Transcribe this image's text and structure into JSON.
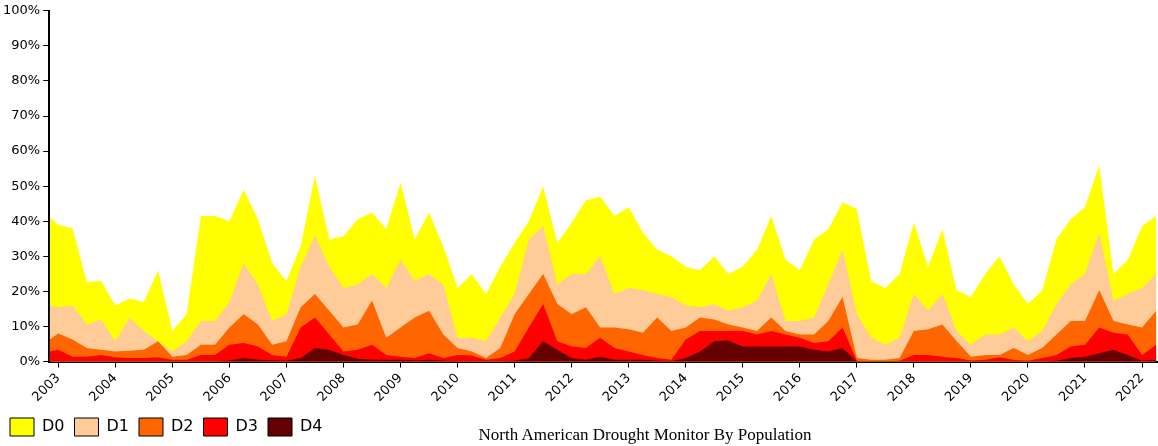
{
  "chart_data": {
    "type": "area",
    "title": "North American Drought Monitor By Population",
    "legend": "bottom left",
    "x": [
      2002.85,
      2003,
      2003.25,
      2003.5,
      2003.75,
      2004,
      2004.25,
      2004.5,
      2004.75,
      2005,
      2005.25,
      2005.5,
      2005.75,
      2006,
      2006.25,
      2006.5,
      2006.75,
      2007,
      2007.25,
      2007.5,
      2007.75,
      2008,
      2008.25,
      2008.5,
      2008.75,
      2009,
      2009.25,
      2009.5,
      2009.75,
      2010,
      2010.25,
      2010.5,
      2010.75,
      2011,
      2011.25,
      2011.5,
      2011.75,
      2012,
      2012.25,
      2012.5,
      2012.75,
      2013,
      2013.25,
      2013.5,
      2013.75,
      2014,
      2014.25,
      2014.5,
      2014.75,
      2015,
      2015.25,
      2015.5,
      2015.75,
      2016,
      2016.25,
      2016.5,
      2016.75,
      2017,
      2017.25,
      2017.5,
      2017.75,
      2018,
      2018.25,
      2018.5,
      2018.75,
      2019,
      2019.25,
      2019.5,
      2019.75,
      2020,
      2020.25,
      2020.5,
      2020.75,
      2021,
      2021.25,
      2021.5,
      2021.75,
      2022,
      2022.25
    ],
    "xlim": [
      2002.84,
      2022.28
    ],
    "xticks": [
      2003,
      2004,
      2005,
      2006,
      2007,
      2008,
      2009,
      2010,
      2011,
      2012,
      2013,
      2014,
      2015,
      2016,
      2017,
      2018,
      2019,
      2020,
      2021,
      2022
    ],
    "ylim": [
      0,
      100
    ],
    "yticks": [
      {
        "value": 0,
        "label": "0%"
      },
      {
        "value": 10,
        "label": "10%"
      },
      {
        "value": 20,
        "label": "20%"
      },
      {
        "value": 30,
        "label": "30%"
      },
      {
        "value": 40,
        "label": "40%"
      },
      {
        "value": 50,
        "label": "50%"
      },
      {
        "value": 60,
        "label": "60%"
      },
      {
        "value": 70,
        "label": "70%"
      },
      {
        "value": 80,
        "label": "80%"
      },
      {
        "value": 90,
        "label": "90%"
      },
      {
        "value": 100,
        "label": "100%"
      }
    ],
    "series": [
      {
        "name": "D0",
        "color": "#ffff00",
        "values": [
          41,
          39,
          38,
          22.7,
          23,
          16,
          18,
          17,
          26,
          8.7,
          13.5,
          41.5,
          41.5,
          40,
          49,
          40.6,
          28,
          23,
          32.9,
          53,
          34.8,
          35.7,
          40.6,
          42.5,
          37.7,
          51,
          34.8,
          42.5,
          32.9,
          21,
          25,
          19.3,
          27,
          33.8,
          40,
          50,
          33.8,
          39.6,
          46,
          47,
          41.5,
          44,
          36.7,
          31.9,
          30,
          27,
          26,
          30,
          25,
          27,
          31.9,
          41.5,
          29,
          26,
          34.8,
          37.7,
          45.4,
          43.5,
          23,
          21,
          25,
          39.6,
          27,
          37.7,
          20.3,
          18.4,
          25,
          30,
          22,
          16.4,
          20.3,
          34.8,
          40.6,
          44,
          56,
          25,
          29,
          38.6,
          41.5
        ]
      },
      {
        "name": "D1",
        "color": "#ffcc99",
        "values": [
          16,
          15.5,
          16,
          10.6,
          12,
          5.8,
          12.6,
          8.7,
          5.8,
          2.9,
          5.8,
          11.6,
          11.6,
          17,
          28,
          22,
          11.6,
          13.5,
          27,
          36,
          27,
          21,
          22,
          25,
          21,
          29,
          23,
          25,
          22,
          6.8,
          6.8,
          5.8,
          12.6,
          19.3,
          34.8,
          38.6,
          22,
          25,
          25,
          30,
          19.3,
          21,
          20.3,
          19.3,
          18.4,
          16,
          15.5,
          16.4,
          14.5,
          15.5,
          17.4,
          25,
          11.6,
          11.6,
          12.6,
          22,
          31.9,
          13.5,
          6.8,
          4.8,
          6.8,
          19.3,
          14.5,
          19.3,
          8.7,
          4.8,
          7.7,
          7.7,
          9.7,
          5.8,
          8.7,
          16.4,
          22,
          25,
          36.7,
          17.4,
          19.3,
          21,
          25
        ]
      },
      {
        "name": "D2",
        "color": "#ff6600",
        "values": [
          6.3,
          8,
          6.3,
          3.9,
          3.4,
          2.9,
          3.1,
          3.4,
          5.8,
          1.4,
          1.9,
          4.8,
          4.8,
          9.7,
          13.5,
          10.6,
          4.8,
          5.8,
          15.5,
          19.3,
          14.5,
          9.7,
          10.6,
          17.4,
          6.8,
          9.7,
          12.6,
          14.5,
          7.7,
          3.9,
          2.9,
          1,
          3.9,
          13.5,
          19.3,
          25,
          16.4,
          13.5,
          15.5,
          9.7,
          9.7,
          9.2,
          8.2,
          12.6,
          8.7,
          9.7,
          12.6,
          12,
          10.6,
          9.7,
          8.7,
          12.6,
          8.7,
          7.7,
          7.7,
          11.6,
          18.4,
          1,
          0.5,
          0.5,
          1,
          8.7,
          9.2,
          10.6,
          5.8,
          1.4,
          1.9,
          1.9,
          3.9,
          1.9,
          3.9,
          7.7,
          11.6,
          11.6,
          20.3,
          11.6,
          10.6,
          9.7,
          14.5
        ]
      },
      {
        "name": "D3",
        "color": "#ff0000",
        "values": [
          2.9,
          3.4,
          1.4,
          1.4,
          1.9,
          1.2,
          1,
          1,
          1.2,
          0.5,
          0.5,
          1.9,
          1.9,
          4.8,
          5.3,
          4.3,
          1.9,
          1.4,
          9.7,
          12.6,
          7.7,
          2.9,
          3.4,
          4.8,
          1.9,
          1.4,
          1,
          2.4,
          1,
          1.9,
          1.7,
          0.5,
          1,
          2.9,
          9.7,
          16.4,
          5.8,
          4.3,
          3.9,
          6.8,
          3.9,
          2.9,
          1.9,
          1,
          0.5,
          6.3,
          8.7,
          8.7,
          8.7,
          8.7,
          7.7,
          8.7,
          7.7,
          6.8,
          5.3,
          5.8,
          9.7,
          0.2,
          0,
          0,
          0.2,
          1.9,
          1.9,
          1.4,
          1,
          0.3,
          0.5,
          1.2,
          0.5,
          0.2,
          1,
          1.9,
          4.3,
          4.8,
          9.7,
          8.2,
          7.7,
          1.9,
          4.8
        ]
      },
      {
        "name": "D4",
        "color": "#660000",
        "values": [
          0,
          0,
          0,
          0,
          0,
          0,
          0,
          0,
          0,
          0,
          0,
          0,
          0,
          0.3,
          1,
          0.5,
          0.4,
          0.2,
          1,
          3.9,
          3.4,
          1.9,
          0.8,
          0.5,
          0.5,
          0.5,
          0.3,
          0.5,
          0.2,
          0.1,
          0.1,
          0,
          0,
          0.2,
          1,
          5.8,
          3.4,
          1,
          0.5,
          1.4,
          0.5,
          0.5,
          0.5,
          0.2,
          0.1,
          1,
          2.9,
          5.8,
          6,
          4.3,
          4.3,
          4.3,
          4.3,
          4.3,
          3.4,
          2.9,
          3.9,
          0,
          0,
          0,
          0,
          0,
          0,
          0,
          0,
          0,
          0,
          0,
          0,
          0,
          0,
          0.2,
          1,
          1.4,
          2.4,
          3.4,
          1.9,
          0.2,
          0.5
        ]
      }
    ]
  }
}
